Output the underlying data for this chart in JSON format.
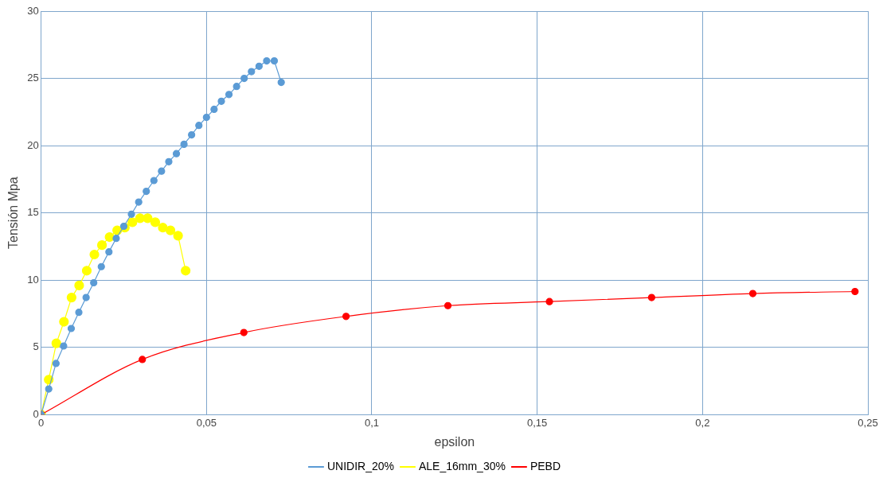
{
  "chart_data": {
    "type": "line",
    "xlabel": "epsilon",
    "ylabel": "Tensión Mpa",
    "xlim": [
      0,
      0.25
    ],
    "ylim": [
      0,
      30
    ],
    "xticks": [
      0,
      {
        "value": 0.05,
        "label": "0,05"
      },
      {
        "value": 0.1,
        "label": "0,1"
      },
      {
        "value": 0.15,
        "label": "0,15"
      },
      {
        "value": 0.2,
        "label": "0,2"
      },
      {
        "value": 0.25,
        "label": "0,25"
      }
    ],
    "yticks": [
      0,
      5,
      10,
      15,
      20,
      25,
      30
    ],
    "grid": true,
    "legend": "bottom",
    "marker": "circle",
    "line_style": "solid",
    "series": [
      {
        "name": "UNIDIR_20%",
        "color": "#5b9bd5",
        "x": [
          0,
          0.0023,
          0.0045,
          0.0068,
          0.0091,
          0.0114,
          0.0136,
          0.0159,
          0.0182,
          0.0205,
          0.0227,
          0.025,
          0.0273,
          0.0295,
          0.0318,
          0.0341,
          0.0364,
          0.0386,
          0.0409,
          0.0432,
          0.0455,
          0.0477,
          0.05,
          0.0523,
          0.0545,
          0.0568,
          0.0591,
          0.0614,
          0.0636,
          0.0659,
          0.0682,
          0.0705,
          0.0726
        ],
        "values": [
          0,
          1.9,
          3.8,
          5.1,
          6.4,
          7.6,
          8.7,
          9.8,
          11.0,
          12.1,
          13.1,
          14.0,
          14.9,
          15.8,
          16.6,
          17.4,
          18.1,
          18.8,
          19.4,
          20.1,
          20.8,
          21.5,
          22.1,
          22.7,
          23.3,
          23.8,
          24.4,
          25.0,
          25.5,
          25.9,
          26.3,
          26.3,
          24.7
        ]
      },
      {
        "name": "ALE_16mm_30%",
        "color": "#ffff00",
        "x": [
          0,
          0.0023,
          0.0046,
          0.0069,
          0.0092,
          0.0115,
          0.0138,
          0.0161,
          0.0184,
          0.0207,
          0.023,
          0.0253,
          0.0276,
          0.0299,
          0.0322,
          0.0345,
          0.0368,
          0.0391,
          0.0414,
          0.0437
        ],
        "values": [
          0,
          2.6,
          5.3,
          6.9,
          8.7,
          9.6,
          10.7,
          11.9,
          12.6,
          13.2,
          13.7,
          13.9,
          14.3,
          14.6,
          14.6,
          14.3,
          13.9,
          13.7,
          13.3,
          10.7
        ]
      },
      {
        "name": "PEBD",
        "color": "#ff0000",
        "x": [
          0,
          0.0306,
          0.0613,
          0.0922,
          0.123,
          0.1537,
          0.1846,
          0.2152,
          0.2461
        ],
        "values": [
          0,
          4.1,
          6.1,
          7.3,
          8.1,
          8.4,
          8.7,
          9.0,
          9.15
        ]
      }
    ]
  }
}
